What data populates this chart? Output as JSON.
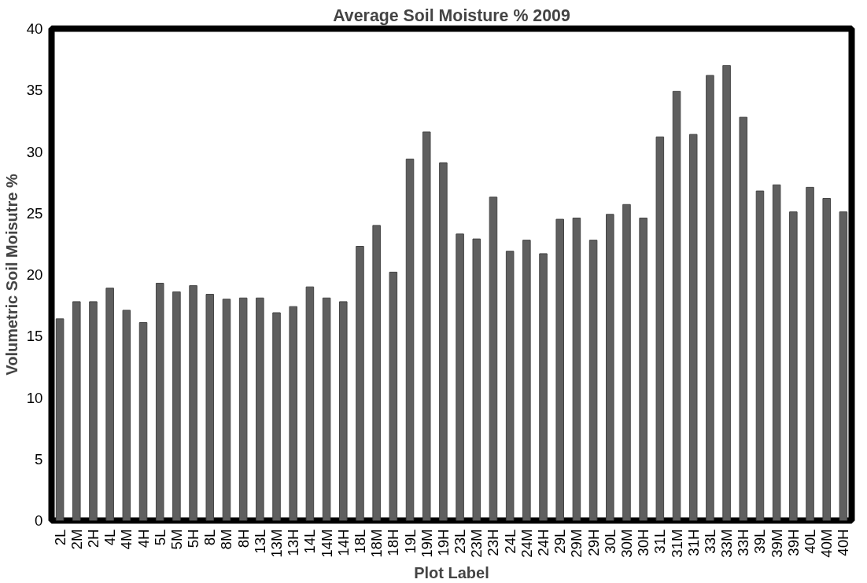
{
  "chart_data": {
    "type": "bar",
    "title": "Average Soil Moisture % 2009",
    "xlabel": "Plot Label",
    "ylabel": "Volumetric Soil Moisutre %",
    "categories": [
      "2L",
      "2M",
      "2H",
      "4L",
      "4M",
      "4H",
      "5L",
      "5M",
      "5H",
      "8L",
      "8M",
      "8H",
      "13L",
      "13M",
      "13H",
      "14L",
      "14M",
      "14H",
      "18L",
      "18M",
      "18H",
      "19L",
      "19M",
      "19H",
      "23L",
      "23M",
      "23H",
      "24L",
      "24M",
      "24H",
      "29L",
      "29M",
      "29H",
      "30L",
      "30M",
      "30H",
      "31L",
      "31M",
      "31H",
      "33L",
      "33M",
      "33H",
      "39L",
      "39M",
      "39H",
      "40L",
      "40M",
      "40H"
    ],
    "values": [
      16.4,
      17.8,
      17.8,
      18.9,
      17.1,
      16.1,
      19.3,
      18.6,
      19.1,
      18.4,
      18.0,
      18.1,
      18.1,
      16.9,
      17.4,
      19.0,
      18.1,
      17.8,
      22.3,
      24.0,
      20.2,
      29.4,
      31.6,
      29.1,
      23.3,
      22.9,
      26.3,
      21.9,
      22.8,
      21.7,
      24.5,
      24.6,
      22.8,
      24.9,
      25.7,
      24.6,
      31.2,
      34.9,
      31.4,
      36.2,
      37.0,
      32.8,
      26.8,
      27.3,
      25.1,
      27.1,
      26.2,
      25.1
    ],
    "color": "#5f5f5f",
    "ylim": [
      0,
      40
    ],
    "yticks": [
      0,
      5,
      10,
      15,
      20,
      25,
      30,
      35,
      40
    ],
    "grid": false
  }
}
